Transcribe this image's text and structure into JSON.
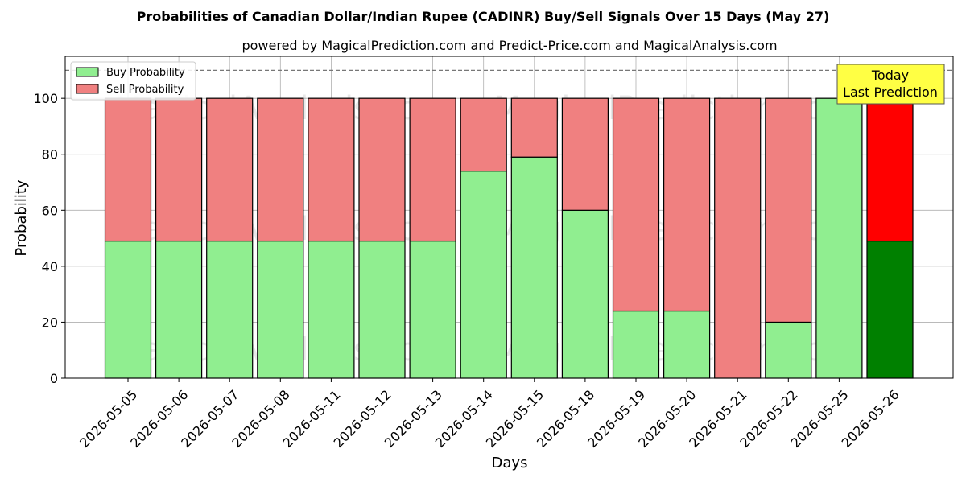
{
  "chart_data": {
    "type": "bar",
    "stacked": true,
    "title": "Probabilities of Canadian Dollar/Indian Rupee (CADINR) Buy/Sell Signals Over 15 Days (May 27)",
    "subtitle": "powered by MagicalPrediction.com and Predict-Price.com and MagicalAnalysis.com",
    "xlabel": "Days",
    "ylabel": "Probability",
    "ylim": [
      0,
      115
    ],
    "yticks": [
      0,
      20,
      40,
      60,
      80,
      100
    ],
    "grid": true,
    "legend_position": "top-left",
    "reference_line": 110,
    "categories": [
      "2026-05-05",
      "2026-05-06",
      "2026-05-07",
      "2026-05-08",
      "2026-05-11",
      "2026-05-12",
      "2026-05-13",
      "2026-05-14",
      "2026-05-15",
      "2026-05-18",
      "2026-05-19",
      "2026-05-20",
      "2026-05-21",
      "2026-05-22",
      "2026-05-25",
      "2026-05-26"
    ],
    "series": [
      {
        "name": "Buy Probability",
        "color": "#90ee90",
        "highlight_color": "#008000",
        "values": [
          49,
          49,
          49,
          49,
          49,
          49,
          49,
          74,
          79,
          60,
          24,
          24,
          0,
          20,
          100,
          49
        ]
      },
      {
        "name": "Sell Probability",
        "color": "#f08080",
        "highlight_color": "#ff0000",
        "values": [
          51,
          51,
          51,
          51,
          51,
          51,
          51,
          26,
          21,
          40,
          76,
          76,
          100,
          80,
          0,
          51
        ]
      }
    ],
    "highlight_index": 15,
    "annotation": {
      "line1": "Today",
      "line2": "Last Prediction",
      "color": "#ffff44"
    },
    "watermarks": [
      "MagicalAnalysis.com",
      "MagicalPrediction.com"
    ]
  }
}
